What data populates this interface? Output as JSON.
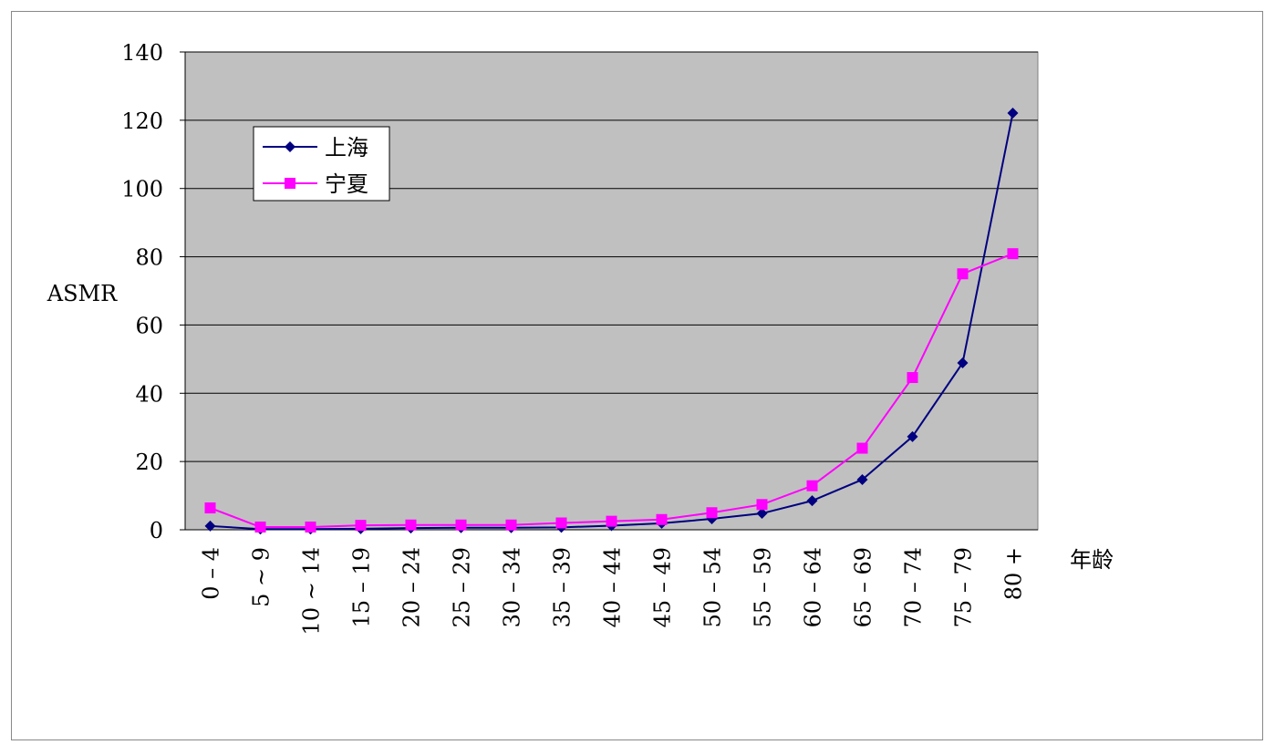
{
  "chart_data": {
    "type": "line",
    "x_label": "年龄",
    "y_label": "ASMR",
    "categories": [
      "0 – 4",
      "5 ~ 9",
      "10 ~ 14",
      "15 – 19",
      "20 – 24",
      "25 – 29",
      "30 – 34",
      "35 – 39",
      "40 – 44",
      "45 – 49",
      "50 – 54",
      "55 – 59",
      "60 – 64",
      "65 – 69",
      "70 – 74",
      "75 – 79",
      "80 +"
    ],
    "series": [
      {
        "name": "上海",
        "color": "#000080",
        "marker": "diamond",
        "values": [
          1.1,
          0.2,
          0.2,
          0.3,
          0.5,
          0.6,
          0.6,
          0.7,
          1.2,
          1.9,
          3.2,
          4.8,
          8.5,
          14.7,
          27.3,
          48.9,
          122.1
        ]
      },
      {
        "name": "宁夏",
        "color": "#ff00ff",
        "marker": "square",
        "values": [
          6.4,
          0.8,
          0.8,
          1.3,
          1.4,
          1.4,
          1.4,
          2.0,
          2.5,
          3.0,
          5.0,
          7.4,
          12.9,
          23.9,
          44.6,
          75.0,
          80.9
        ]
      }
    ],
    "ylim": [
      0,
      140
    ],
    "yticks": [
      0,
      20,
      40,
      60,
      80,
      100,
      120,
      140
    ],
    "grid": true,
    "legend": "upper-left"
  }
}
